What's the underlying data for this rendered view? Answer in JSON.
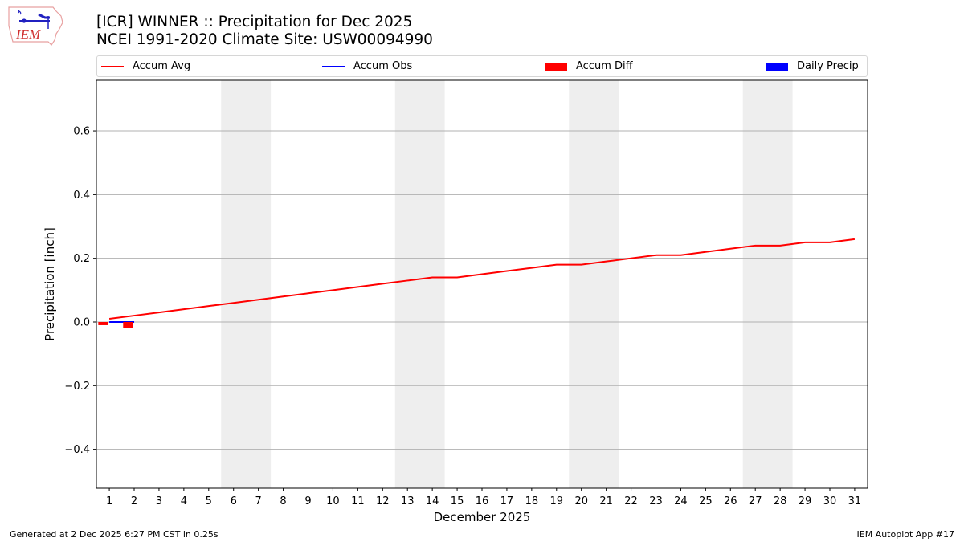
{
  "header": {
    "title_line1": "[ICR] WINNER :: Precipitation for Dec 2025",
    "title_line2": "NCEI 1991-2020 Climate Site: USW00094990",
    "logo_text": "IEM"
  },
  "legend": [
    {
      "label": "Accum Avg",
      "type": "line",
      "color": "#ff0000"
    },
    {
      "label": "Accum Obs",
      "type": "line",
      "color": "#0000ff"
    },
    {
      "label": "Accum Diff",
      "type": "patch",
      "color": "#ff0000"
    },
    {
      "label": "Daily Precip",
      "type": "patch",
      "color": "#0000ff"
    }
  ],
  "footer": {
    "generated": "Generated at 2 Dec 2025 6:27 PM CST in 0.25s",
    "app": "IEM Autoplot App #17"
  },
  "colors": {
    "avg": "#ff0000",
    "obs": "#0000ff",
    "diff": "#ff0000",
    "daily": "#0000ff",
    "weekend": "#eeeeee",
    "grid": "#b0b0b0"
  },
  "chart_data": {
    "type": "line",
    "title": "[ICR] WINNER :: Precipitation for Dec 2025\nNCEI 1991-2020 Climate Site: USW00094990",
    "xlabel": "December 2025",
    "ylabel": "Precipitation [inch]",
    "xlim": [
      0.48,
      31.52
    ],
    "ylim": [
      -0.522,
      0.759
    ],
    "grid": "y",
    "legend_position": "top (above axes, 4 columns)",
    "x": [
      1,
      2,
      3,
      4,
      5,
      6,
      7,
      8,
      9,
      10,
      11,
      12,
      13,
      14,
      15,
      16,
      17,
      18,
      19,
      20,
      21,
      22,
      23,
      24,
      25,
      26,
      27,
      28,
      29,
      30,
      31
    ],
    "x_tick_labels": [
      "1",
      "2",
      "3",
      "4",
      "5",
      "6",
      "7",
      "8",
      "9",
      "10",
      "11",
      "12",
      "13",
      "14",
      "15",
      "16",
      "17",
      "18",
      "19",
      "20",
      "21",
      "22",
      "23",
      "24",
      "25",
      "26",
      "27",
      "28",
      "29",
      "30",
      "31"
    ],
    "y_ticks": [
      -0.4,
      -0.2,
      0.0,
      0.2,
      0.4,
      0.6
    ],
    "y_tick_labels": [
      "−0.4",
      "−0.2",
      "0.0",
      "0.2",
      "0.4",
      "0.6"
    ],
    "series": [
      {
        "name": "Accum Avg",
        "type": "line",
        "color": "#ff0000",
        "x": [
          1,
          2,
          3,
          4,
          5,
          6,
          7,
          8,
          9,
          10,
          11,
          12,
          13,
          14,
          15,
          16,
          17,
          18,
          19,
          20,
          21,
          22,
          23,
          24,
          25,
          26,
          27,
          28,
          29,
          30,
          31
        ],
        "values": [
          0.01,
          0.02,
          0.03,
          0.04,
          0.05,
          0.06,
          0.07,
          0.08,
          0.09,
          0.1,
          0.11,
          0.12,
          0.13,
          0.14,
          0.14,
          0.15,
          0.16,
          0.17,
          0.18,
          0.18,
          0.19,
          0.2,
          0.21,
          0.21,
          0.22,
          0.23,
          0.24,
          0.24,
          0.25,
          0.25,
          0.26
        ]
      },
      {
        "name": "Accum Obs",
        "type": "line",
        "color": "#0000ff",
        "x": [
          1,
          2
        ],
        "values": [
          0.0,
          0.0
        ]
      },
      {
        "name": "Accum Diff",
        "type": "bar",
        "color": "#ff0000",
        "x": [
          1,
          2
        ],
        "values": [
          -0.01,
          -0.02
        ]
      },
      {
        "name": "Daily Precip",
        "type": "bar",
        "color": "#0000ff",
        "x": [
          1,
          2
        ],
        "values": [
          0.0,
          0.0
        ]
      }
    ],
    "shaded_weekends": [
      [
        5.5,
        7.5
      ],
      [
        12.5,
        14.5
      ],
      [
        19.5,
        21.5
      ],
      [
        26.5,
        28.5
      ]
    ]
  }
}
